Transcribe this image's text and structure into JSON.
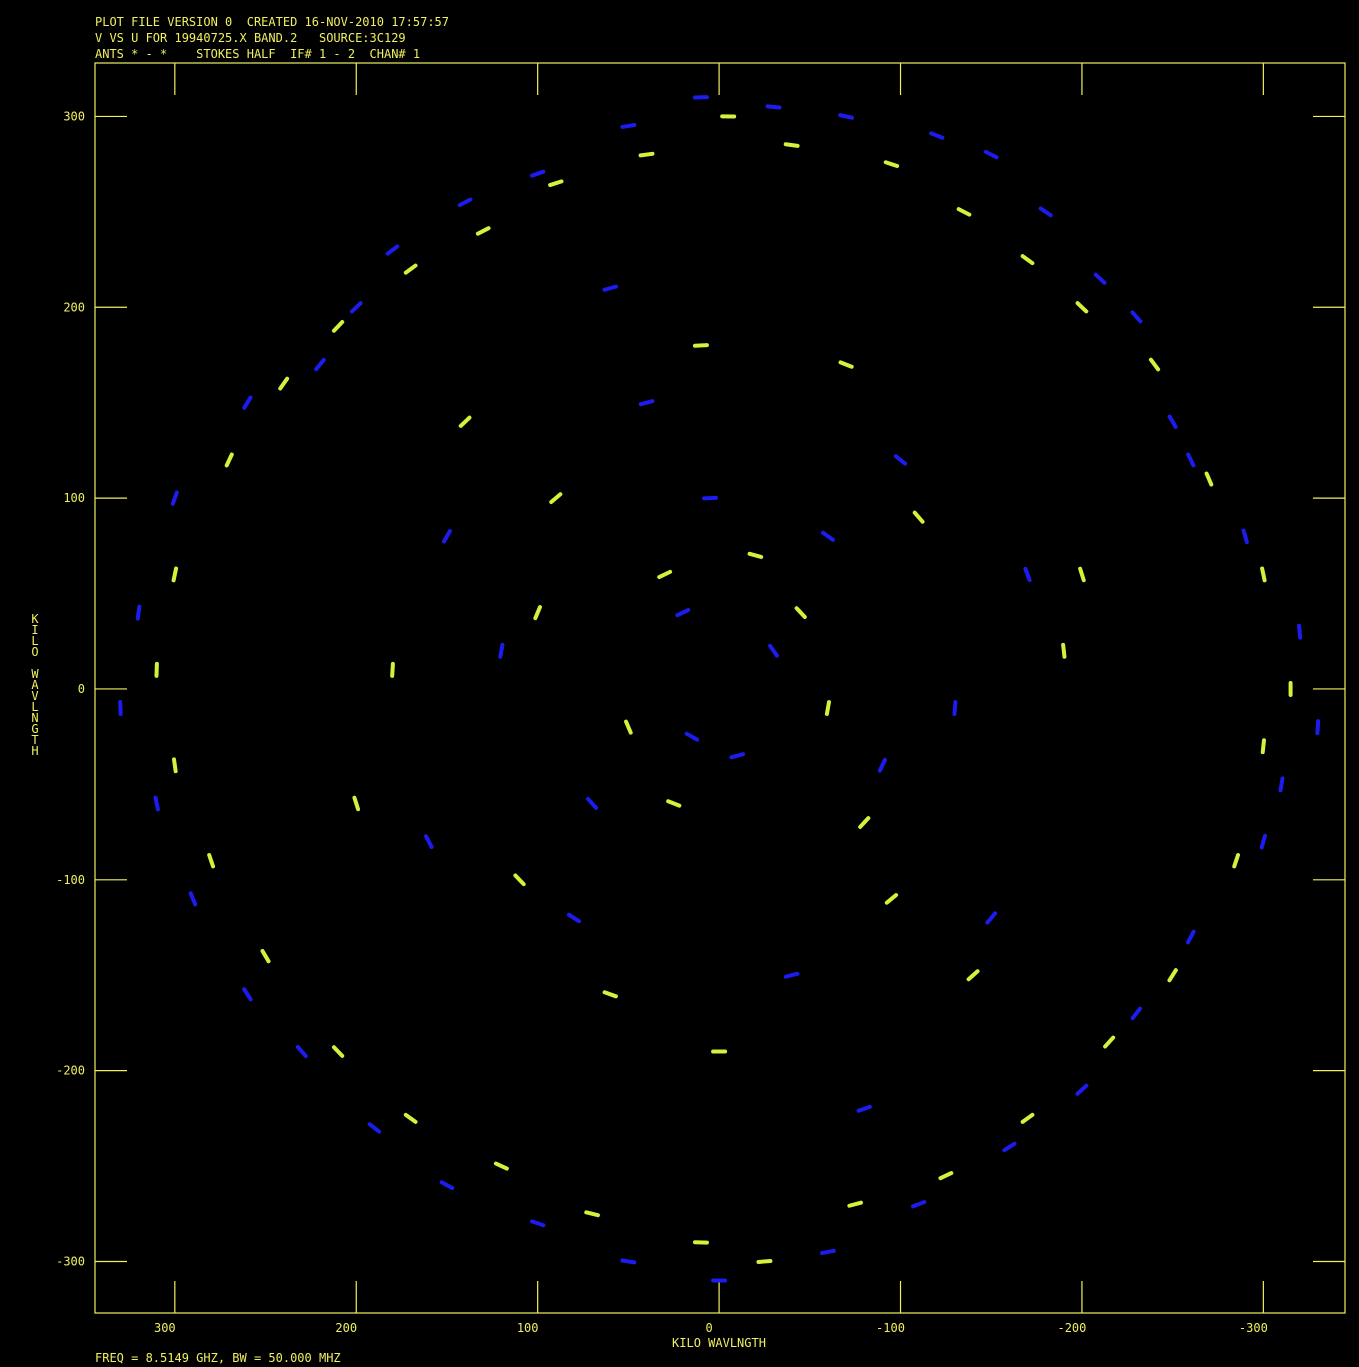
{
  "chart_data": {
    "type": "scatter",
    "header": [
      "PLOT FILE VERSION 0  CREATED 16-NOV-2010 17:57:57",
      "V VS U FOR 19940725.X BAND.2   SOURCE:3C129",
      "ANTS * - *    STOKES HALF  IF# 1 - 2  CHAN# 1"
    ],
    "x_label": "KILO WAVLNGTH",
    "y_label": "KILO WAVLNGTH",
    "footer": "FREQ = 8.5149 GHZ, BW = 50.000 MHZ",
    "xlim": [
      344,
      -345
    ],
    "ylim": [
      -327,
      328
    ],
    "xticks": [
      300,
      200,
      100,
      0,
      -100,
      -200,
      -300
    ],
    "yticks": [
      300,
      200,
      100,
      0,
      -100,
      -200,
      -300
    ],
    "series": [
      {
        "color": "#1c1cf0",
        "x": [
          10,
          -30,
          -70,
          50,
          -120,
          100,
          -150,
          140,
          -180,
          180,
          -210,
          200,
          -230,
          220,
          -250,
          260,
          -260,
          300,
          -290,
          320,
          -320,
          330,
          -330,
          310,
          -310,
          290,
          -300,
          260,
          -260,
          230,
          -230,
          190,
          -200,
          150,
          -160,
          100,
          -110,
          50,
          -60,
          0,
          5,
          -60,
          70,
          -90,
          40,
          -100,
          120,
          -130,
          80,
          -40,
          20,
          -30,
          15,
          -10,
          150,
          -170,
          160,
          -150,
          60,
          -80
        ],
        "values": [
          310,
          305,
          300,
          295,
          290,
          270,
          280,
          255,
          250,
          230,
          215,
          200,
          195,
          170,
          140,
          150,
          120,
          100,
          80,
          40,
          30,
          -10,
          -20,
          -60,
          -50,
          -110,
          -80,
          -160,
          -130,
          -190,
          -170,
          -230,
          -210,
          -260,
          -240,
          -280,
          -270,
          -300,
          -295,
          -310,
          100,
          80,
          -60,
          -40,
          150,
          120,
          20,
          -10,
          -120,
          -150,
          40,
          20,
          -25,
          -35,
          80,
          60,
          -80,
          -120,
          210,
          -220
        ]
      },
      {
        "color": "#d8f03c",
        "x": [
          -5,
          40,
          -40,
          90,
          -95,
          130,
          -135,
          170,
          -170,
          210,
          -200,
          240,
          -240,
          270,
          -270,
          300,
          -300,
          310,
          -315,
          300,
          -300,
          280,
          -285,
          250,
          -250,
          210,
          -215,
          170,
          -170,
          120,
          -125,
          70,
          -75,
          10,
          -25,
          30,
          -20,
          50,
          -60,
          90,
          -110,
          110,
          -95,
          10,
          0,
          180,
          -190,
          140,
          -140,
          200,
          -200,
          60,
          -70,
          25,
          -45,
          100,
          -80
        ],
        "values": [
          300,
          280,
          285,
          265,
          275,
          240,
          250,
          220,
          225,
          190,
          200,
          160,
          170,
          120,
          110,
          60,
          60,
          10,
          0,
          -40,
          -30,
          -90,
          -90,
          -140,
          -150,
          -190,
          -185,
          -225,
          -225,
          -250,
          -255,
          -275,
          -270,
          -290,
          -300,
          60,
          70,
          -20,
          -10,
          100,
          90,
          -100,
          -110,
          180,
          -190,
          10,
          20,
          140,
          -150,
          -60,
          60,
          -160,
          170,
          -60,
          40,
          40,
          -70
        ]
      }
    ]
  }
}
